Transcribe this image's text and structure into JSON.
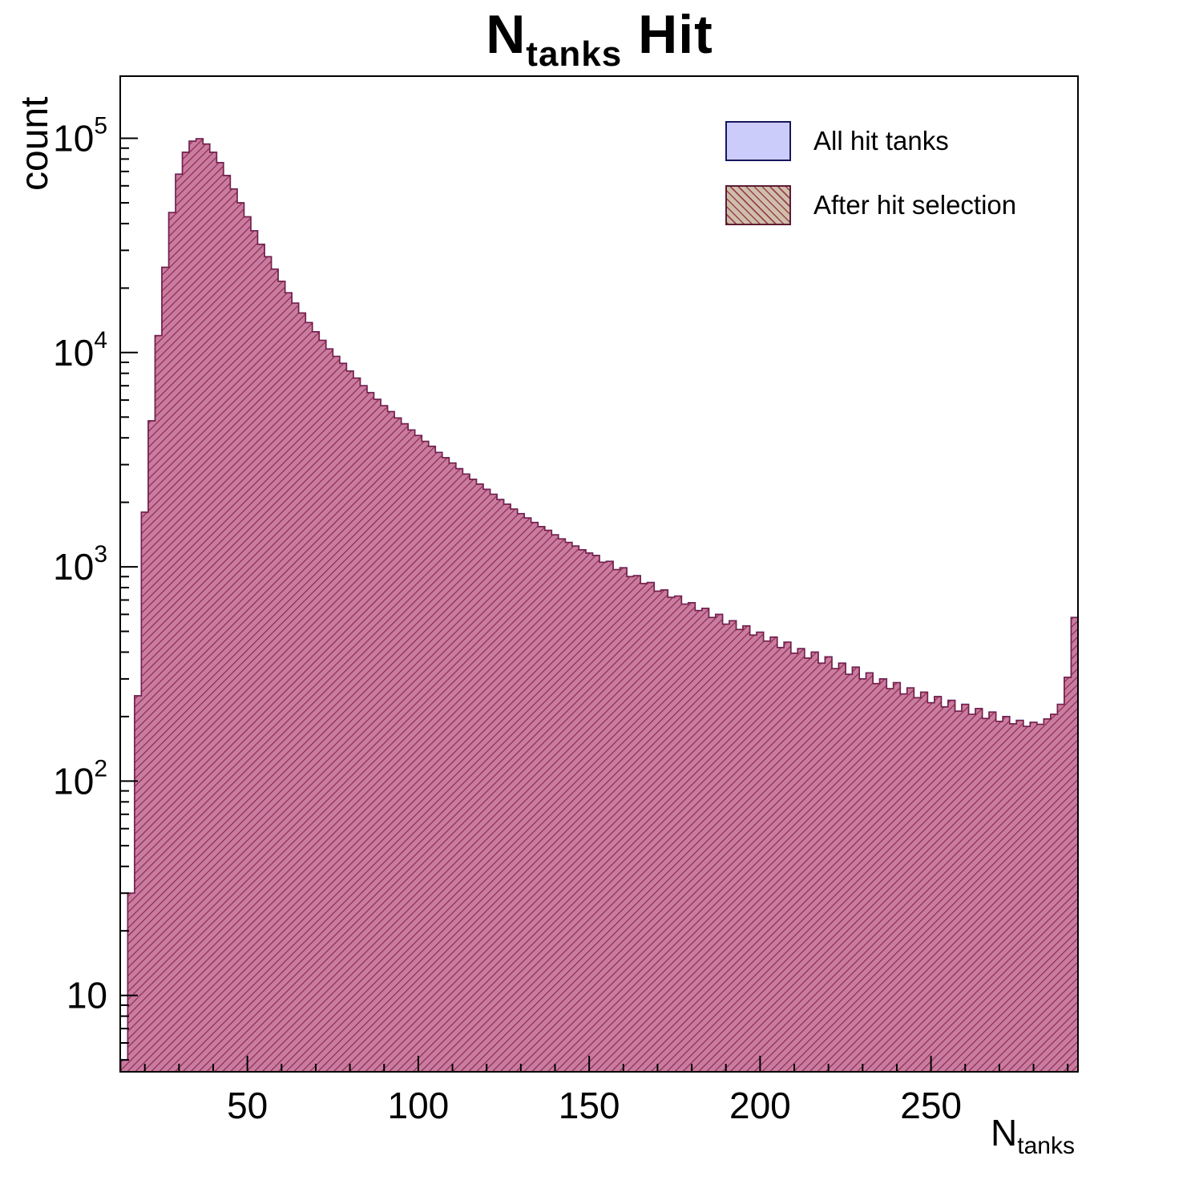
{
  "title": {
    "pre": "N",
    "sub": "tanks",
    "post": " Hit"
  },
  "y_axis_label": "count",
  "x_axis_label": {
    "pre": "N",
    "sub": "tanks"
  },
  "legend": {
    "items": [
      {
        "label": "All hit tanks",
        "swatch": "solid-lavender"
      },
      {
        "label": "After hit selection",
        "swatch": "red-diagonal-hatch"
      }
    ]
  },
  "chart_data": {
    "type": "histogram",
    "title": "N_tanks Hit",
    "xlabel": "N_tanks",
    "ylabel": "count",
    "log_y": true,
    "grid": false,
    "legend_position": "top-right",
    "xlim": [
      12.8,
      293
    ],
    "ylim": [
      4.4,
      195000
    ],
    "x_major_ticks": [
      50,
      100,
      150,
      200,
      250
    ],
    "x_minor_step": 10,
    "y_tick_exponents": [
      1,
      2,
      3,
      4,
      5
    ],
    "bin_start": 13,
    "bin_width": 2,
    "colors": {
      "all_fill": "#ccccfa",
      "all_line": "#3b3bc0",
      "selected_hatch_bg": "rgba(199,86,120,0.68)",
      "selected_hatch_line": "#8f2a4a",
      "selected_line": "#7c1f3d",
      "frame": "#000000"
    },
    "series": [
      {
        "name": "All hit tanks",
        "fill": "#ccccfa",
        "line": "#3b3bc0",
        "counts": [
          5,
          30,
          250,
          1800,
          4800,
          12000,
          25000,
          45000,
          68000,
          86000,
          97000,
          99500,
          94000,
          86000,
          77000,
          67000,
          58000,
          50000,
          43000,
          37000,
          32000,
          28000,
          24500,
          21500,
          19000,
          17000,
          15300,
          13800,
          12500,
          11400,
          10400,
          9600,
          8900,
          8200,
          7600,
          7000,
          6500,
          6050,
          5650,
          5300,
          4950,
          4650,
          4350,
          4100,
          3850,
          3650,
          3420,
          3230,
          3050,
          2870,
          2710,
          2560,
          2430,
          2300,
          2180,
          2060,
          1960,
          1860,
          1770,
          1690,
          1610,
          1540,
          1480,
          1410,
          1350,
          1300,
          1250,
          1200,
          1160,
          1130,
          1050,
          1060,
          970,
          990,
          900,
          910,
          835,
          845,
          770,
          780,
          720,
          730,
          670,
          680,
          625,
          640,
          580,
          600,
          540,
          560,
          510,
          530,
          480,
          495,
          450,
          470,
          420,
          445,
          395,
          415,
          375,
          400,
          355,
          380,
          335,
          355,
          315,
          340,
          300,
          320,
          285,
          300,
          270,
          288,
          255,
          272,
          245,
          260,
          232,
          248,
          222,
          238,
          212,
          228,
          205,
          218,
          196,
          210,
          190,
          200,
          185,
          192,
          180,
          188,
          184,
          195,
          205,
          228,
          305,
          580
        ]
      },
      {
        "name": "After hit selection",
        "fill": "hatch",
        "hatch_bg": "rgba(199,86,120,0.68)",
        "hatch_line": "#8f2a4a",
        "line": "#7c1f3d",
        "counts": [
          5,
          30,
          250,
          1800,
          4800,
          12000,
          25000,
          45000,
          68000,
          86000,
          97000,
          99500,
          94000,
          86000,
          77000,
          67000,
          58000,
          50000,
          43000,
          37000,
          32000,
          28000,
          24500,
          21500,
          19000,
          17000,
          15300,
          13800,
          12500,
          11400,
          10400,
          9600,
          8900,
          8200,
          7600,
          7000,
          6500,
          6050,
          5650,
          5300,
          4950,
          4650,
          4350,
          4100,
          3850,
          3650,
          3420,
          3230,
          3050,
          2870,
          2710,
          2560,
          2430,
          2300,
          2180,
          2060,
          1960,
          1860,
          1770,
          1690,
          1610,
          1540,
          1480,
          1410,
          1350,
          1300,
          1250,
          1200,
          1160,
          1130,
          1050,
          1060,
          970,
          990,
          900,
          910,
          835,
          845,
          770,
          780,
          720,
          730,
          670,
          680,
          625,
          640,
          580,
          600,
          540,
          560,
          510,
          530,
          480,
          495,
          450,
          470,
          420,
          445,
          395,
          415,
          375,
          400,
          355,
          380,
          335,
          355,
          315,
          340,
          300,
          320,
          285,
          300,
          270,
          288,
          255,
          272,
          245,
          260,
          232,
          248,
          222,
          238,
          212,
          228,
          205,
          218,
          196,
          210,
          190,
          200,
          185,
          192,
          180,
          188,
          184,
          195,
          205,
          228,
          305,
          580
        ]
      }
    ]
  }
}
